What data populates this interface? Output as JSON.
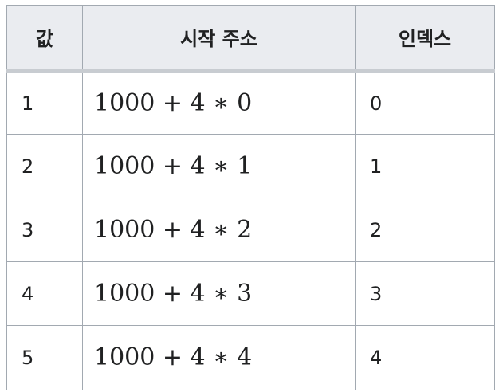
{
  "table": {
    "headers": [
      "값",
      "시작 주소",
      "인덱스"
    ],
    "rows": [
      {
        "value": "1",
        "address": "1000 + 4 ∗ 0",
        "index": "0"
      },
      {
        "value": "2",
        "address": "1000 + 4 ∗ 1",
        "index": "1"
      },
      {
        "value": "3",
        "address": "1000 + 4 ∗ 2",
        "index": "2"
      },
      {
        "value": "4",
        "address": "1000 + 4 ∗ 3",
        "index": "3"
      },
      {
        "value": "5",
        "address": "1000 + 4 ∗ 4",
        "index": "4"
      }
    ]
  }
}
